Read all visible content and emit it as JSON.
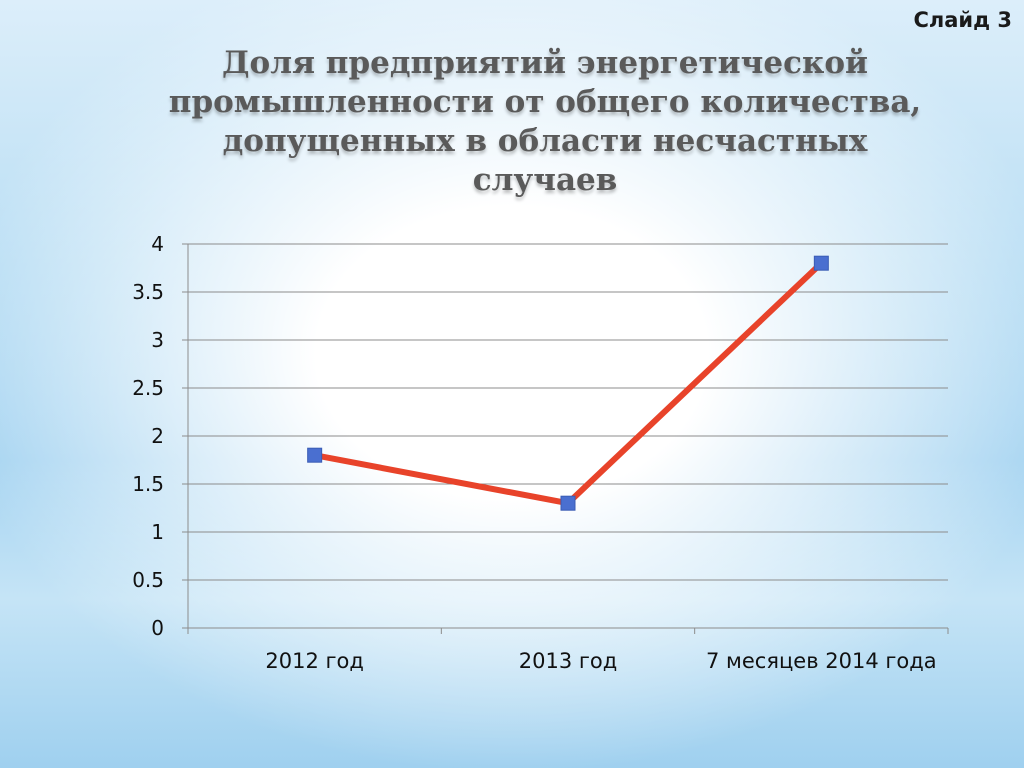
{
  "slide": {
    "label": "Слайд 3"
  },
  "chart_data": {
    "type": "line",
    "title": "Доля предприятий энергетической промышленности от общего количества, допущенных в области несчастных случаев",
    "categories": [
      "2012 год",
      "2013 год",
      "7 месяцев 2014 года"
    ],
    "series": [
      {
        "values": [
          1.8,
          1.3,
          3.8
        ]
      }
    ],
    "ylim": [
      0,
      4
    ],
    "y_ticks": [
      "0",
      "0.5",
      "1",
      "1.5",
      "2",
      "2.5",
      "3",
      "3.5",
      "4"
    ],
    "grid": true,
    "legend": "none",
    "colors": {
      "line": "#e8432a",
      "marker": "#4a6fd0",
      "grid": "#8c8c8c"
    }
  }
}
